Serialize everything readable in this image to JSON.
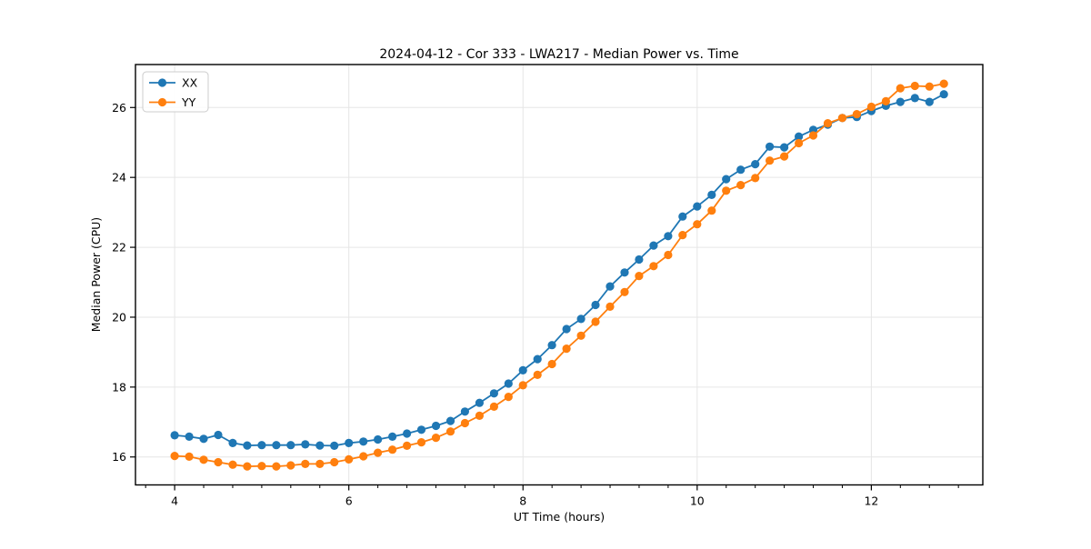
{
  "figure": {
    "background": "#ffffff",
    "grid_color": "#e6e6e6",
    "spine_color": "#000000"
  },
  "chart_data": {
    "type": "line",
    "title": "2024-04-12 - Cor 333 - LWA217 - Median Power vs. Time",
    "xlabel": "UT Time (hours)",
    "ylabel": "Median Power (CPU)",
    "xlim": [
      3.55,
      13.28
    ],
    "ylim": [
      15.2,
      27.23
    ],
    "xticks": [
      4,
      6,
      8,
      10,
      12
    ],
    "yticks": [
      16,
      18,
      20,
      22,
      24,
      26
    ],
    "x_minor_tick_start": 3.6667,
    "x_minor_tick_step": 0.33333,
    "grid": true,
    "legend_position": "upper left",
    "marker": "circle",
    "x": [
      4.0,
      4.167,
      4.333,
      4.5,
      4.667,
      4.833,
      5.0,
      5.167,
      5.333,
      5.5,
      5.667,
      5.833,
      6.0,
      6.167,
      6.333,
      6.5,
      6.667,
      6.833,
      7.0,
      7.167,
      7.333,
      7.5,
      7.667,
      7.833,
      8.0,
      8.167,
      8.333,
      8.5,
      8.667,
      8.833,
      9.0,
      9.167,
      9.333,
      9.5,
      9.667,
      9.833,
      10.0,
      10.167,
      10.333,
      10.5,
      10.667,
      10.833,
      11.0,
      11.167,
      11.333,
      11.5,
      11.667,
      11.833,
      12.0,
      12.167,
      12.333,
      12.5,
      12.667,
      12.833
    ],
    "series": [
      {
        "name": "XX",
        "color": "#1f77b4",
        "values": [
          16.62,
          16.58,
          16.52,
          16.63,
          16.4,
          16.33,
          16.34,
          16.34,
          16.34,
          16.36,
          16.33,
          16.32,
          16.4,
          16.44,
          16.5,
          16.58,
          16.67,
          16.78,
          16.89,
          17.03,
          17.3,
          17.55,
          17.82,
          18.1,
          18.48,
          18.8,
          19.2,
          19.66,
          19.95,
          20.35,
          20.88,
          21.28,
          21.65,
          22.05,
          22.32,
          22.88,
          23.17,
          23.5,
          23.95,
          24.22,
          24.38,
          24.88,
          24.86,
          25.17,
          25.36,
          25.51,
          25.7,
          25.73,
          25.9,
          26.05,
          26.16,
          26.27,
          26.16,
          26.38
        ]
      },
      {
        "name": "YY",
        "color": "#ff7f0e",
        "values": [
          16.03,
          16.01,
          15.92,
          15.85,
          15.78,
          15.73,
          15.74,
          15.73,
          15.76,
          15.8,
          15.8,
          15.85,
          15.93,
          16.02,
          16.12,
          16.21,
          16.32,
          16.42,
          16.55,
          16.73,
          16.97,
          17.18,
          17.44,
          17.72,
          18.05,
          18.35,
          18.66,
          19.1,
          19.47,
          19.87,
          20.3,
          20.72,
          21.18,
          21.46,
          21.78,
          22.35,
          22.66,
          23.05,
          23.62,
          23.78,
          23.98,
          24.48,
          24.6,
          24.98,
          25.2,
          25.55,
          25.7,
          25.81,
          26.02,
          26.18,
          26.55,
          26.62,
          26.6,
          26.68
        ]
      }
    ]
  }
}
